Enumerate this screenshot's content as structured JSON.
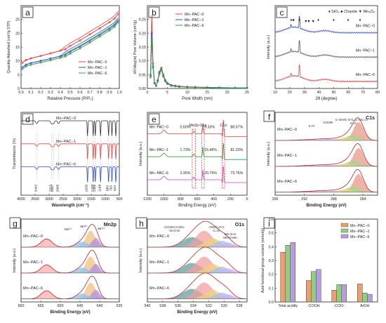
{
  "panels": [
    {
      "id": "a",
      "letter": "a",
      "type": "line",
      "xlabel": "Relative Pressure (P/P₀)",
      "ylabel": "Quantity Adsorbed (cm³/g STP)",
      "xlim": [
        0,
        1
      ],
      "ylim": [
        0,
        30
      ],
      "xticks": [
        0.0,
        0.1,
        0.2,
        0.3,
        0.4,
        0.5,
        0.6,
        0.7,
        0.8,
        0.9,
        1.0
      ],
      "xtick_labels": [
        "0.0",
        "0.1",
        "0.2",
        "0.3",
        "0.4",
        "0.5",
        "0.6",
        "0.7",
        "0.8",
        "0.9",
        "1.0"
      ],
      "yticks": [
        0,
        5,
        10,
        15,
        20,
        25
      ],
      "ytick_labels": [
        "0",
        "5",
        "10",
        "15",
        "20",
        "25"
      ],
      "legend": [
        "Mn−PAC−0",
        "Mn−PAC−1",
        "Mn−PAC−6"
      ],
      "series": [
        {
          "name": "Mn−PAC−0",
          "color": "#e8413c",
          "x": [
            0.01,
            0.05,
            0.1,
            0.2,
            0.3,
            0.4,
            0.45,
            0.5,
            0.6,
            0.7,
            0.8,
            0.9,
            0.95,
            0.99
          ],
          "y": [
            9.2,
            10.3,
            10.9,
            11.8,
            12.7,
            13.7,
            14.2,
            15.4,
            17.4,
            19.6,
            21.8,
            24.0,
            25.3,
            27.0
          ]
        },
        {
          "name": "Mn−PAC−1",
          "color": "#2a4bd8",
          "x": [
            0.01,
            0.05,
            0.1,
            0.2,
            0.3,
            0.4,
            0.45,
            0.5,
            0.6,
            0.7,
            0.8,
            0.9,
            0.95,
            0.99
          ],
          "y": [
            7.6,
            8.6,
            9.2,
            10.0,
            10.8,
            11.7,
            12.2,
            13.3,
            15.2,
            17.3,
            19.4,
            21.6,
            22.9,
            24.6
          ]
        },
        {
          "name": "Mn−PAC−6",
          "color": "#3aa04a",
          "x": [
            0.01,
            0.05,
            0.1,
            0.2,
            0.3,
            0.4,
            0.45,
            0.5,
            0.6,
            0.7,
            0.8,
            0.9,
            0.95,
            0.99
          ],
          "y": [
            7.0,
            8.0,
            8.6,
            9.4,
            10.2,
            11.1,
            11.6,
            12.6,
            14.5,
            16.6,
            18.8,
            21.0,
            22.3,
            24.0
          ]
        }
      ]
    },
    {
      "id": "b",
      "letter": "b",
      "type": "line",
      "xlabel": "Pore Width (nm)",
      "ylabel": "dV/dlog(w) Pore Volume (cm³/g)",
      "xlim": [
        0,
        25
      ],
      "ylim": [
        0,
        0.3
      ],
      "xticks": [
        0,
        5,
        10,
        15,
        20,
        25
      ],
      "xtick_labels": [
        "0",
        "5",
        "10",
        "15",
        "20",
        "25"
      ],
      "yticks": [
        0.0,
        0.05,
        0.1,
        0.15,
        0.2,
        0.25
      ],
      "ytick_labels": [
        "0.00",
        "0.05",
        "0.10",
        "0.15",
        "0.20",
        "0.25"
      ],
      "legend": [
        "Mn−PAC−0",
        "Mn−PAC−1",
        "Mn−PAC−6"
      ],
      "series": [
        {
          "name": "Mn−PAC−0",
          "color": "#e8413c",
          "x": [
            0.8,
            1.1,
            1.4,
            1.8,
            2.2,
            2.6,
            3.0,
            3.5,
            4.0,
            4.5,
            5.0,
            6,
            7,
            8,
            10,
            12,
            15,
            18,
            22,
            25
          ],
          "y": [
            0.05,
            0.26,
            0.09,
            0.02,
            0.01,
            0.03,
            0.06,
            0.075,
            0.05,
            0.03,
            0.02,
            0.012,
            0.01,
            0.008,
            0.006,
            0.005,
            0.004,
            0.003,
            0.002,
            0.002
          ]
        },
        {
          "name": "Mn−PAC−1",
          "color": "#2a4bd8",
          "x": [
            0.8,
            1.1,
            1.4,
            1.8,
            2.2,
            2.6,
            3.0,
            3.5,
            4.0,
            4.5,
            5.0,
            6,
            7,
            8,
            10,
            12,
            15,
            18,
            22,
            25
          ],
          "y": [
            0.045,
            0.2,
            0.08,
            0.02,
            0.01,
            0.028,
            0.055,
            0.07,
            0.046,
            0.028,
            0.018,
            0.011,
            0.009,
            0.007,
            0.005,
            0.004,
            0.003,
            0.003,
            0.002,
            0.002
          ]
        },
        {
          "name": "Mn−PAC−6",
          "color": "#3aa04a",
          "x": [
            0.8,
            1.1,
            1.4,
            1.8,
            2.2,
            2.6,
            3.0,
            3.5,
            4.0,
            4.5,
            5.0,
            6,
            7,
            8,
            10,
            12,
            15,
            18,
            22,
            25
          ],
          "y": [
            0.04,
            0.18,
            0.075,
            0.018,
            0.01,
            0.026,
            0.052,
            0.068,
            0.044,
            0.026,
            0.017,
            0.01,
            0.008,
            0.006,
            0.005,
            0.004,
            0.003,
            0.002,
            0.002,
            0.002
          ]
        }
      ]
    },
    {
      "id": "c",
      "letter": "c",
      "type": "line",
      "xlabel": "2θ (degree)",
      "ylabel": "Intensity (a.u.)",
      "xlim": [
        10,
        80
      ],
      "xticks": [
        10,
        20,
        30,
        40,
        50,
        60,
        70,
        80
      ],
      "xtick_labels": [
        "10",
        "20",
        "30",
        "40",
        "50",
        "60",
        "70",
        "80"
      ],
      "legend_text": "♦ SiO₂ ♣ Chaoite ▼ Mn₃O₄",
      "series": [
        {
          "name": "Mn−PAC−0",
          "color": "#2a4bd8",
          "offset": 2
        },
        {
          "name": "Mn−PAC−1",
          "color": "#555555",
          "offset": 1
        },
        {
          "name": "Mn−PAC−6",
          "color": "#e8413c",
          "offset": 0
        }
      ],
      "markers": [
        {
          "x": 20.9,
          "s": "♦"
        },
        {
          "x": 22.5,
          "s": "♣"
        },
        {
          "x": 26.6,
          "s": "♦"
        },
        {
          "x": 31,
          "s": "▼"
        },
        {
          "x": 33,
          "s": "▼"
        },
        {
          "x": 36,
          "s": "▼"
        },
        {
          "x": 39.5,
          "s": "♦"
        },
        {
          "x": 50,
          "s": "♦"
        },
        {
          "x": 59.9,
          "s": "♦"
        },
        {
          "x": 68,
          "s": "♦"
        }
      ]
    },
    {
      "id": "d",
      "letter": "d",
      "type": "line",
      "xlabel": "Wavelength (cm⁻¹)",
      "ylabel": "Transmittance (%)",
      "xlim": [
        4000,
        500
      ],
      "xticks": [
        4000,
        3500,
        3000,
        2500,
        2000,
        1500,
        1000,
        500
      ],
      "xtick_labels": [
        "4000",
        "3500",
        "3000",
        "2500",
        "2000",
        "1500",
        "1000",
        "500"
      ],
      "series": [
        {
          "name": "Mn−PAC−0",
          "color": "#333333",
          "offset": 2
        },
        {
          "name": "Mn−PAC−1",
          "color": "#e8413c",
          "offset": 1
        },
        {
          "name": "Mn−PAC−6",
          "color": "#2a4bd8",
          "offset": 0
        }
      ],
      "peaks": [
        {
          "x": 3442,
          "label": "3442"
        },
        {
          "x": 2915,
          "label": "2915"
        },
        {
          "x": 2847,
          "label": "2847"
        },
        {
          "x": 2665,
          "label": "2665"
        },
        {
          "x": 1633,
          "label": "1633"
        },
        {
          "x": 1430,
          "label": "1430"
        },
        {
          "x": 1355,
          "label": "1355"
        },
        {
          "x": 1168,
          "label": "1168"
        },
        {
          "x": 883,
          "label": "883"
        },
        {
          "x": 763,
          "label": "763"
        },
        {
          "x": 624,
          "label": "624"
        }
      ]
    },
    {
      "id": "e",
      "letter": "e",
      "type": "line",
      "xlabel": "Binding Energy (eV)",
      "ylabel": "Intensity (a.u.)",
      "xlim": [
        1200,
        0
      ],
      "xticks": [
        1200,
        1000,
        800,
        600,
        400,
        200,
        0
      ],
      "xtick_labels": [
        "1200",
        "1000",
        "800",
        "600",
        "400",
        "200",
        "0"
      ],
      "series": [
        {
          "name": "Mn−PAC−0",
          "color": "#e8413c",
          "offset": 2,
          "mn": "0.60%",
          "o": "9.33%",
          "c": "88.57%"
        },
        {
          "name": "Mn−PAC−1",
          "color": "#2c9a3a",
          "offset": 1,
          "mn": "1.73%",
          "o": "15.46%",
          "c": "81.23%"
        },
        {
          "name": "Mn−PAC−6",
          "color": "#cc44cc",
          "offset": 0,
          "mn": "2.95%",
          "o": "20.75%",
          "c": "73.76%"
        }
      ],
      "peak_labels": [
        "Mn2p",
        "O1s",
        "C1s"
      ]
    },
    {
      "id": "f",
      "letter": "f",
      "type": "xps",
      "title": "C1s",
      "xlabel": "Binding Energy (eV)",
      "ylabel": "Intensity (a.u.)",
      "xlim": [
        296,
        282
      ],
      "xticks": [
        296,
        292,
        288,
        284
      ],
      "xtick_labels": [
        "296",
        "292",
        "288",
        "284"
      ],
      "series": [
        "Mn−PAC−0",
        "Mn−PAC−1",
        "Mn−PAC−6"
      ],
      "component_labels": [
        "π-π*",
        "COOR",
        "C-OH/C-O-C",
        "C=C",
        "C-C/C=C"
      ]
    },
    {
      "id": "g",
      "letter": "g",
      "type": "xps",
      "title": "Mn2p",
      "xlabel": "Binding Energy (eV)",
      "ylabel": "Intensity (a.u.)",
      "xlim": [
        660,
        635
      ],
      "xticks": [
        660,
        655,
        650,
        645,
        640,
        635
      ],
      "xtick_labels": [
        "660",
        "655",
        "650",
        "645",
        "640",
        "635"
      ],
      "series": [
        "Mn−PAC−0",
        "Mn−PAC−1",
        "Mn−PAC−6"
      ],
      "component_labels": [
        "Mn²⁺",
        "Mn³⁺",
        "Mn⁴⁺"
      ]
    },
    {
      "id": "h",
      "letter": "h",
      "type": "xps",
      "title": "O1s",
      "xlabel": "Binding Energy (eV)",
      "ylabel": "Intensity (a.u.)",
      "xlim": [
        540,
        527
      ],
      "xticks": [
        540,
        538,
        536,
        534,
        532,
        530,
        528
      ],
      "xtick_labels": [
        "540",
        "538",
        "536",
        "534",
        "532",
        "530",
        "528"
      ],
      "series": [
        "Mn−PAC−0",
        "Mn−PAC−1",
        "Mn−PAC−6"
      ],
      "component_labels": [
        "-COOH/-COO-",
        "-Si-O-Si",
        "-OH/C-O-C",
        "C=O",
        "Mn-O-H",
        "Mn-O-Mn"
      ]
    },
    {
      "id": "i",
      "letter": "i",
      "type": "bar",
      "ylabel": "Acid functional group content (mmol/g)",
      "categories": [
        "Total acidity",
        "-COOH",
        "-COO-",
        "ArOH"
      ],
      "ylim": [
        0,
        0.6
      ],
      "yticks": [
        0.0,
        0.1,
        0.2,
        0.3,
        0.4,
        0.5,
        0.6
      ],
      "ytick_labels": [
        "0.0",
        "0.1",
        "0.2",
        "0.3",
        "0.4",
        "0.5",
        "0.6"
      ],
      "series": [
        {
          "name": "Mn−PAC−0",
          "color": "#e8a070",
          "values": [
            0.36,
            0.155,
            0.085,
            0.13
          ]
        },
        {
          "name": "Mn−PAC−1",
          "color": "#8fcf7e",
          "values": [
            0.41,
            0.22,
            0.125,
            0.065
          ]
        },
        {
          "name": "Mn−PAC−6",
          "color": "#b89ce0",
          "values": [
            0.43,
            0.235,
            0.125,
            0.055
          ]
        }
      ]
    }
  ],
  "chart_data": [
    {
      "type": "line",
      "panel": "a",
      "xlabel": "Relative Pressure (P/P₀)",
      "ylabel": "Quantity Adsorbed (cm³/g STP)",
      "xlim": [
        0,
        1
      ],
      "ylim": [
        0,
        30
      ],
      "series": [
        {
          "name": "Mn−PAC−0",
          "x": [
            0.01,
            0.1,
            0.3,
            0.5,
            0.7,
            0.9,
            0.99
          ],
          "y": [
            9.2,
            10.9,
            12.7,
            15.4,
            19.6,
            24.0,
            27.0
          ]
        },
        {
          "name": "Mn−PAC−1",
          "x": [
            0.01,
            0.1,
            0.3,
            0.5,
            0.7,
            0.9,
            0.99
          ],
          "y": [
            7.6,
            9.2,
            10.8,
            13.3,
            17.3,
            21.6,
            24.6
          ]
        },
        {
          "name": "Mn−PAC−6",
          "x": [
            0.01,
            0.1,
            0.3,
            0.5,
            0.7,
            0.9,
            0.99
          ],
          "y": [
            7.0,
            8.6,
            10.2,
            12.6,
            16.6,
            21.0,
            24.0
          ]
        }
      ]
    },
    {
      "type": "line",
      "panel": "b",
      "xlabel": "Pore Width (nm)",
      "xlim": [
        0,
        25
      ],
      "ylim": [
        0,
        0.3
      ],
      "series": [
        {
          "name": "Mn−PAC−0",
          "x": [
            1.1,
            3.5
          ],
          "y": [
            0.26,
            0.075
          ]
        },
        {
          "name": "Mn−PAC−1",
          "x": [
            1.1,
            3.5
          ],
          "y": [
            0.2,
            0.07
          ]
        },
        {
          "name": "Mn−PAC−6",
          "x": [
            1.1,
            3.5
          ],
          "y": [
            0.18,
            0.068
          ]
        }
      ]
    },
    {
      "type": "bar",
      "panel": "i",
      "ylabel": "Acid functional group content (mmol/g)",
      "categories": [
        "Total acidity",
        "-COOH",
        "-COO-",
        "ArOH"
      ],
      "series": [
        {
          "name": "Mn−PAC−0",
          "values": [
            0.36,
            0.155,
            0.085,
            0.13
          ]
        },
        {
          "name": "Mn−PAC−1",
          "values": [
            0.41,
            0.22,
            0.125,
            0.065
          ]
        },
        {
          "name": "Mn−PAC−6",
          "values": [
            0.43,
            0.235,
            0.125,
            0.055
          ]
        }
      ],
      "ylim": [
        0,
        0.6
      ]
    }
  ]
}
